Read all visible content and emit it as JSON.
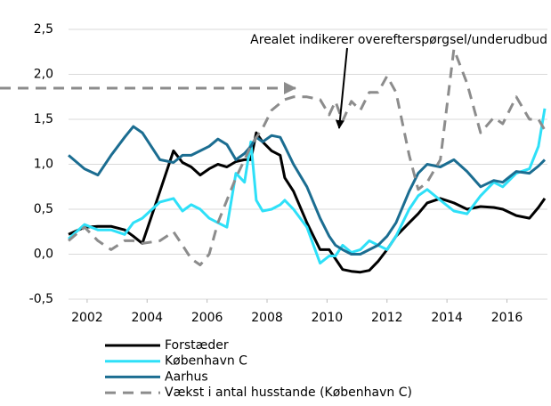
{
  "chart_data": {
    "type": "line",
    "annotation": "Arealet indikerer overefterspørgsel/underudbud",
    "x": [
      2001.38,
      2001.91,
      2002.36,
      2002.8,
      2003.25,
      2003.54,
      2003.84,
      2004.43,
      2004.88,
      2005.18,
      2005.47,
      2005.77,
      2006.07,
      2006.36,
      2006.66,
      2006.96,
      2007.25,
      2007.46,
      2007.64,
      2007.85,
      2008.15,
      2008.44,
      2008.59,
      2008.88,
      2009.33,
      2009.77,
      2010.07,
      2010.28,
      2010.52,
      2010.81,
      2011.11,
      2011.41,
      2011.7,
      2012.0,
      2012.3,
      2012.74,
      2013.04,
      2013.34,
      2013.78,
      2014.23,
      2014.67,
      2015.12,
      2015.56,
      2015.86,
      2016.31,
      2016.75,
      2017.05,
      2017.26
    ],
    "series": [
      {
        "name": "Forstæder",
        "color": "#000000",
        "dash": false,
        "values": [
          0.22,
          0.3,
          0.31,
          0.31,
          0.27,
          0.2,
          0.12,
          0.7,
          1.15,
          1.02,
          0.97,
          0.88,
          0.95,
          1.0,
          0.97,
          1.03,
          1.05,
          1.05,
          1.35,
          1.25,
          1.15,
          1.1,
          0.85,
          0.7,
          0.35,
          0.05,
          0.05,
          -0.05,
          -0.17,
          -0.19,
          -0.2,
          -0.18,
          -0.08,
          0.05,
          0.2,
          0.35,
          0.45,
          0.57,
          0.62,
          0.57,
          0.5,
          0.53,
          0.52,
          0.5,
          0.43,
          0.4,
          0.52,
          0.62
        ]
      },
      {
        "name": "København C",
        "color": "#2ee0f8",
        "dash": false,
        "values": [
          0.17,
          0.33,
          0.27,
          0.27,
          0.22,
          0.35,
          0.4,
          0.58,
          0.62,
          0.48,
          0.55,
          0.5,
          0.4,
          0.35,
          0.3,
          0.9,
          0.8,
          1.25,
          0.6,
          0.48,
          0.5,
          0.55,
          0.6,
          0.5,
          0.3,
          -0.1,
          -0.02,
          -0.02,
          0.1,
          0.02,
          0.05,
          0.15,
          0.1,
          0.05,
          0.2,
          0.5,
          0.65,
          0.72,
          0.6,
          0.48,
          0.45,
          0.65,
          0.8,
          0.75,
          0.9,
          0.95,
          1.2,
          1.62
        ]
      },
      {
        "name": "Aarhus",
        "color": "#1b6d91",
        "dash": false,
        "values": [
          1.1,
          0.95,
          0.88,
          1.1,
          1.3,
          1.42,
          1.35,
          1.05,
          1.02,
          1.1,
          1.1,
          1.15,
          1.2,
          1.28,
          1.22,
          1.05,
          1.12,
          1.2,
          1.3,
          1.25,
          1.32,
          1.3,
          1.2,
          1.0,
          0.75,
          0.4,
          0.2,
          0.1,
          0.05,
          0.0,
          0.0,
          0.05,
          0.1,
          0.2,
          0.35,
          0.7,
          0.9,
          1.0,
          0.97,
          1.05,
          0.92,
          0.75,
          0.82,
          0.8,
          0.92,
          0.9,
          0.98,
          1.05
        ]
      },
      {
        "name": "Vækst i antal husstande (København C)",
        "color": "#8c8c8c",
        "dash": true,
        "values": [
          0.15,
          0.3,
          0.15,
          0.05,
          0.15,
          0.15,
          0.12,
          0.15,
          0.25,
          0.1,
          -0.05,
          -0.12,
          0.0,
          0.35,
          0.6,
          0.85,
          1.05,
          1.2,
          1.3,
          1.4,
          1.6,
          1.68,
          1.72,
          1.75,
          1.75,
          1.72,
          1.55,
          1.7,
          1.48,
          1.7,
          1.6,
          1.8,
          1.8,
          1.98,
          1.8,
          1.1,
          0.72,
          0.8,
          1.05,
          2.28,
          1.9,
          1.35,
          1.52,
          1.45,
          1.75,
          1.5,
          1.5,
          1.38
        ]
      }
    ],
    "xlim": [
      2001.38,
      2017.35
    ],
    "xticks": [
      2002,
      2004,
      2006,
      2008,
      2010,
      2012,
      2014,
      2016
    ],
    "ylim": [
      -0.5,
      2.5
    ],
    "yticks": [
      {
        "value": -0.5,
        "label": "-0,5"
      },
      {
        "value": 0.0,
        "label": "0,0"
      },
      {
        "value": 0.5,
        "label": "0,5"
      },
      {
        "value": 1.0,
        "label": "1,0"
      },
      {
        "value": 1.5,
        "label": "1,5"
      },
      {
        "value": 2.0,
        "label": "2,0"
      },
      {
        "value": 2.5,
        "label": "2,5"
      }
    ],
    "grid": true
  }
}
